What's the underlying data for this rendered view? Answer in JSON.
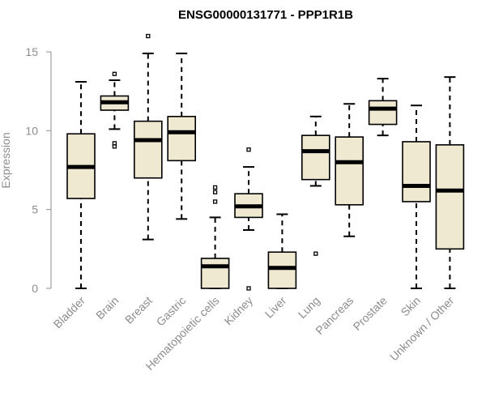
{
  "chart_data": {
    "type": "boxplot",
    "title": "ENSG00000131771 - PPP1R1B",
    "xlabel": "",
    "ylabel": "Expression",
    "ylim": [
      0,
      15
    ],
    "yticks": [
      0,
      5,
      10,
      15
    ],
    "grid": false,
    "box_fill": "#efe9d2",
    "box_stroke": "#000000",
    "categories": [
      "Bladder",
      "Brain",
      "Breast",
      "Gastric",
      "Hematopoietic cells",
      "Kidney",
      "Liver",
      "Lung",
      "Pancreas",
      "Prostate",
      "Skin",
      "Unknown / Other"
    ],
    "series": [
      {
        "category": "Bladder",
        "min": 0.0,
        "q1": 5.7,
        "median": 7.7,
        "q3": 9.8,
        "max": 13.1,
        "outliers": []
      },
      {
        "category": "Brain",
        "min": 10.1,
        "q1": 11.3,
        "median": 11.8,
        "q3": 12.2,
        "max": 13.2,
        "outliers": [
          13.6,
          9.2,
          9.0
        ]
      },
      {
        "category": "Breast",
        "min": 3.1,
        "q1": 7.0,
        "median": 9.4,
        "q3": 10.6,
        "max": 14.9,
        "outliers": [
          16.0
        ]
      },
      {
        "category": "Gastric",
        "min": 4.4,
        "q1": 8.1,
        "median": 9.9,
        "q3": 10.9,
        "max": 14.9,
        "outliers": []
      },
      {
        "category": "Hematopoietic cells",
        "min": 0.0,
        "q1": 0.0,
        "median": 1.4,
        "q3": 1.9,
        "max": 4.5,
        "outliers": [
          6.4,
          6.1,
          5.5
        ]
      },
      {
        "category": "Kidney",
        "min": 3.7,
        "q1": 4.5,
        "median": 5.2,
        "q3": 6.0,
        "max": 7.7,
        "outliers": [
          8.8,
          0.0
        ]
      },
      {
        "category": "Liver",
        "min": 0.0,
        "q1": 0.0,
        "median": 1.3,
        "q3": 2.3,
        "max": 4.7,
        "outliers": []
      },
      {
        "category": "Lung",
        "min": 6.5,
        "q1": 6.9,
        "median": 8.7,
        "q3": 9.7,
        "max": 10.9,
        "outliers": [
          2.2
        ]
      },
      {
        "category": "Pancreas",
        "min": 3.3,
        "q1": 5.3,
        "median": 8.0,
        "q3": 9.6,
        "max": 11.7,
        "outliers": []
      },
      {
        "category": "Prostate",
        "min": 9.7,
        "q1": 10.4,
        "median": 11.4,
        "q3": 11.9,
        "max": 13.3,
        "outliers": []
      },
      {
        "category": "Skin",
        "min": 0.0,
        "q1": 5.5,
        "median": 6.5,
        "q3": 9.3,
        "max": 11.6,
        "outliers": []
      },
      {
        "category": "Unknown / Other",
        "min": 0.0,
        "q1": 2.5,
        "median": 6.2,
        "q3": 9.1,
        "max": 13.4,
        "outliers": []
      }
    ]
  }
}
